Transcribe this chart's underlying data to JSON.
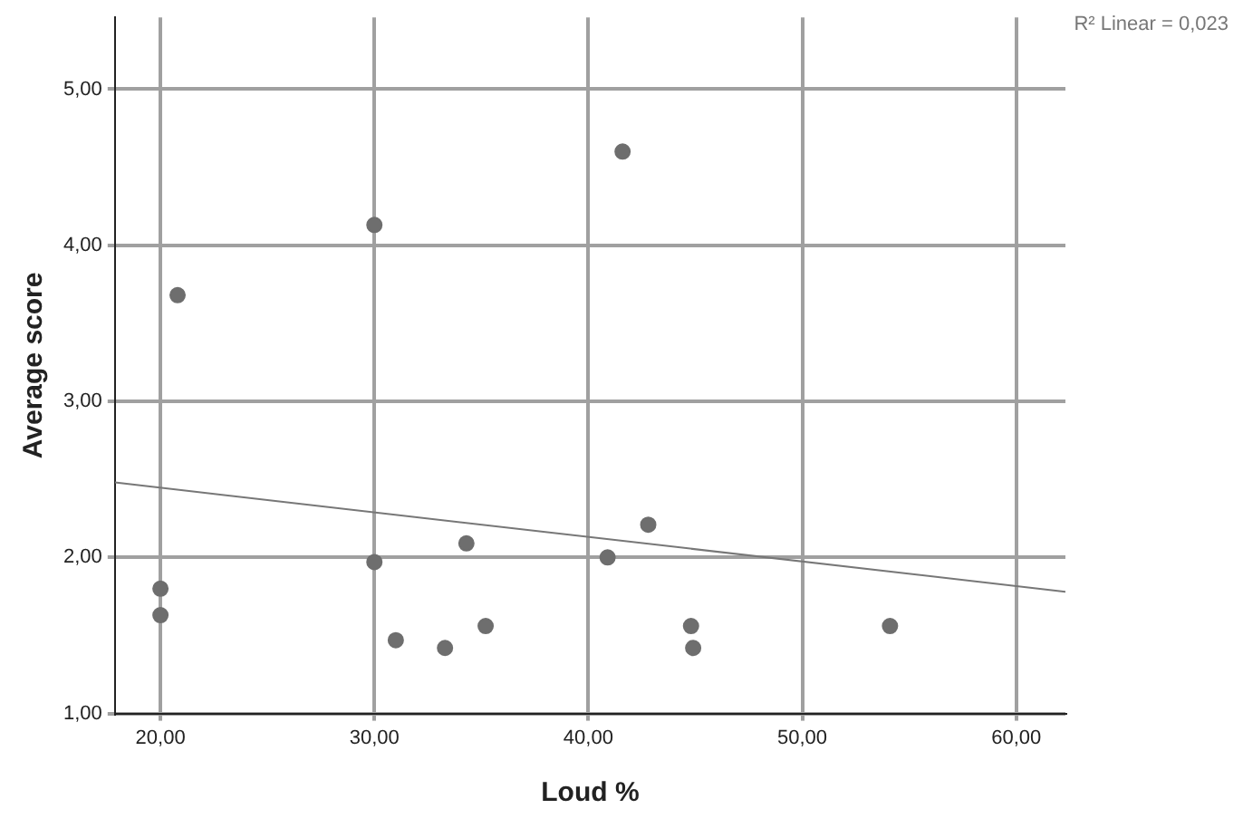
{
  "chart_data": {
    "type": "scatter",
    "xlabel": "Loud %",
    "ylabel": "Average score",
    "annotations": [
      "R² Linear = 0,023"
    ],
    "xlim": [
      17.87,
      62.3
    ],
    "ylim": [
      1,
      5.46
    ],
    "xticks": [
      {
        "value": 20,
        "label": "20,00"
      },
      {
        "value": 30,
        "label": "30,00"
      },
      {
        "value": 40,
        "label": "40,00"
      },
      {
        "value": 50,
        "label": "50,00"
      },
      {
        "value": 60,
        "label": "60,00"
      }
    ],
    "yticks": [
      {
        "value": 1,
        "label": "1,00"
      },
      {
        "value": 2,
        "label": "2,00"
      },
      {
        "value": 3,
        "label": "3,00"
      },
      {
        "value": 4,
        "label": "4,00"
      },
      {
        "value": 5,
        "label": "5,00"
      }
    ],
    "grid": true,
    "legend": false,
    "marker": "circle",
    "series": [
      {
        "color": "#6e6e6e",
        "x": [
          20.0,
          20.0,
          20.8,
          30.0,
          30.0,
          31.0,
          33.3,
          34.3,
          35.2,
          40.9,
          41.6,
          42.8,
          44.8,
          44.9,
          54.1
        ],
        "values": [
          1.8,
          1.63,
          3.68,
          4.13,
          1.97,
          1.47,
          1.42,
          2.09,
          1.56,
          2.0,
          4.6,
          2.21,
          1.56,
          1.42,
          1.56
        ]
      },
      {
        "type": "line",
        "color": "#777777",
        "marker": "none",
        "x": [
          17.87,
          62.3
        ],
        "values": [
          2.48,
          1.78
        ]
      }
    ]
  }
}
